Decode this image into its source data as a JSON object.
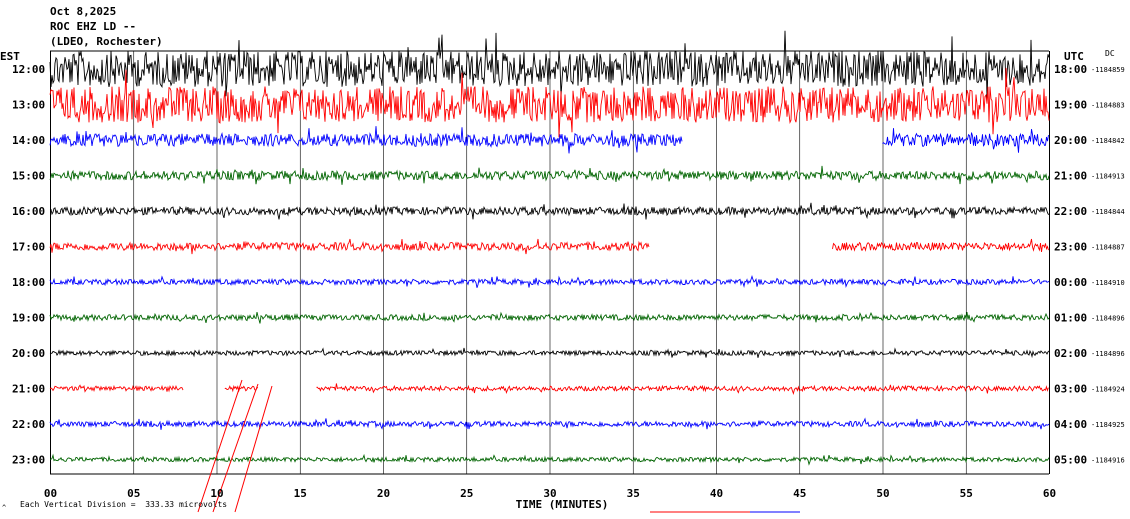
{
  "header": {
    "date": "Oct 8,2025",
    "station": "ROC EHZ LD --",
    "network": "(LDEO, Rochester)"
  },
  "axes": {
    "left_label": "EST",
    "right_label": "UTC",
    "dc_label": "DC",
    "xlabel": "TIME (MINUTES)"
  },
  "footer": {
    "scale_text": "Each Vertical Division =  333.33 microvolts",
    "corner_mark": "^"
  },
  "colors": {
    "black": "#000000",
    "red": "#ff0000",
    "blue": "#0000ff",
    "green": "#006400",
    "grid": "#000000"
  },
  "chart_data": {
    "type": "line",
    "title": "ROC EHZ LD --",
    "xlabel": "TIME (MINUTES)",
    "ylabel": "",
    "xlim": [
      0,
      60
    ],
    "x_ticks": [
      "00",
      "05",
      "10",
      "15",
      "20",
      "25",
      "30",
      "35",
      "40",
      "45",
      "50",
      "55",
      "60"
    ],
    "grid": true,
    "series": [
      {
        "est": "12:00",
        "utc": "18:00",
        "dc": "-1184859",
        "color": "black",
        "amplitude": 1.0,
        "segments": [
          [
            0,
            60
          ]
        ]
      },
      {
        "est": "13:00",
        "utc": "19:00",
        "dc": "-1184883",
        "color": "red",
        "amplitude": 1.0,
        "segments": [
          [
            0,
            60
          ]
        ]
      },
      {
        "est": "14:00",
        "utc": "20:00",
        "dc": "-1184842",
        "color": "blue",
        "amplitude": 0.35,
        "segments": [
          [
            0,
            38
          ],
          [
            50,
            60
          ]
        ]
      },
      {
        "est": "15:00",
        "utc": "21:00",
        "dc": "-1184913",
        "color": "green",
        "amplitude": 0.25,
        "segments": [
          [
            0,
            60
          ]
        ]
      },
      {
        "est": "16:00",
        "utc": "22:00",
        "dc": "-1184844",
        "color": "black",
        "amplitude": 0.22,
        "segments": [
          [
            0,
            60
          ]
        ]
      },
      {
        "est": "17:00",
        "utc": "23:00",
        "dc": "-1184887",
        "color": "red",
        "amplitude": 0.22,
        "segments": [
          [
            0,
            36
          ],
          [
            47,
            60
          ]
        ]
      },
      {
        "est": "18:00",
        "utc": "00:00",
        "dc": "-1184910",
        "color": "blue",
        "amplitude": 0.15,
        "segments": [
          [
            0,
            60
          ]
        ]
      },
      {
        "est": "19:00",
        "utc": "01:00",
        "dc": "-1184896",
        "color": "green",
        "amplitude": 0.16,
        "segments": [
          [
            0,
            60
          ]
        ]
      },
      {
        "est": "20:00",
        "utc": "02:00",
        "dc": "-1184896",
        "color": "black",
        "amplitude": 0.13,
        "segments": [
          [
            0,
            60
          ]
        ]
      },
      {
        "est": "21:00",
        "utc": "03:00",
        "dc": "-1184924",
        "color": "red",
        "amplitude": 0.13,
        "segments": [
          [
            0,
            8
          ],
          [
            10.5,
            12.5
          ],
          [
            16,
            60
          ]
        ]
      },
      {
        "est": "22:00",
        "utc": "04:00",
        "dc": "-1184925",
        "color": "blue",
        "amplitude": 0.15,
        "segments": [
          [
            0,
            60
          ]
        ]
      },
      {
        "est": "23:00",
        "utc": "05:00",
        "dc": "-1184916",
        "color": "green",
        "amplitude": 0.12,
        "segments": [
          [
            0,
            60
          ]
        ]
      }
    ]
  }
}
